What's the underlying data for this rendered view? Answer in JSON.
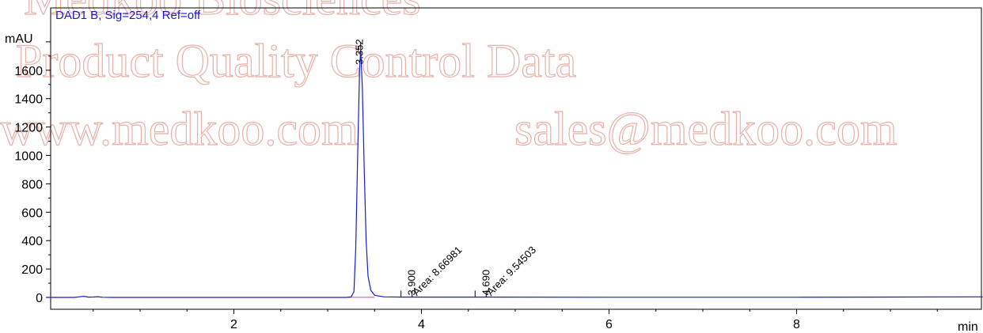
{
  "chart_data": {
    "type": "line",
    "title": "DAD1 B, Sig=254,4 Ref=off",
    "ylabel": "mAU",
    "xlabel": "min",
    "xlim": [
      0,
      10
    ],
    "ylim": [
      -150,
      1900
    ],
    "x_ticks": [
      2,
      4,
      6,
      8
    ],
    "y_ticks": [
      0,
      200,
      400,
      600,
      800,
      1000,
      1200,
      1400,
      1600
    ],
    "series": [
      {
        "color": "#1a1ad0",
        "points": [
          [
            0.0,
            0
          ],
          [
            0.3,
            0
          ],
          [
            0.35,
            4
          ],
          [
            0.4,
            8
          ],
          [
            0.45,
            2
          ],
          [
            0.5,
            3
          ],
          [
            0.55,
            5
          ],
          [
            0.6,
            1
          ],
          [
            0.7,
            0
          ],
          [
            1.5,
            0
          ],
          [
            3.0,
            0
          ],
          [
            3.2,
            0
          ],
          [
            3.25,
            4
          ],
          [
            3.28,
            40
          ],
          [
            3.3,
            350
          ],
          [
            3.32,
            1000
          ],
          [
            3.34,
            1600
          ],
          [
            3.352,
            1750
          ],
          [
            3.37,
            1480
          ],
          [
            3.39,
            900
          ],
          [
            3.41,
            400
          ],
          [
            3.43,
            150
          ],
          [
            3.46,
            50
          ],
          [
            3.5,
            15
          ],
          [
            3.6,
            4
          ],
          [
            3.8,
            2
          ],
          [
            3.9,
            3
          ],
          [
            4.0,
            2
          ],
          [
            4.6,
            2
          ],
          [
            4.69,
            3
          ],
          [
            4.8,
            2
          ],
          [
            6.0,
            1
          ],
          [
            8.0,
            1
          ],
          [
            8.8,
            2
          ],
          [
            10.0,
            4
          ]
        ]
      }
    ],
    "peaks": [
      {
        "label": "3.352",
        "x": 3.352,
        "y": 1750
      },
      {
        "label": "3.900",
        "area_label": "Area: 8.66981",
        "x": 3.9,
        "y": 3
      },
      {
        "label": "4.690",
        "area_label": "Area: 9.54503",
        "x": 4.69,
        "y": 3
      }
    ]
  },
  "watermark": {
    "line1": "Medkoo Biosciences",
    "line2": "Product Quality Control Data",
    "line3a": "www.medkoo.com",
    "line3b": "sales@medkoo.com",
    "color": "#e8b0a8"
  }
}
